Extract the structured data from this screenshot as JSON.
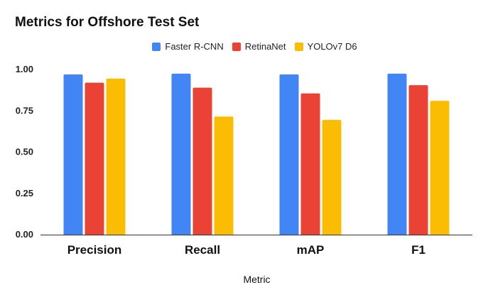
{
  "chart_data": {
    "type": "bar",
    "title": "Metrics for Offshore Test Set",
    "xlabel": "Metric",
    "ylabel": "",
    "categories": [
      "Precision",
      "Recall",
      "mAP",
      "F1"
    ],
    "series": [
      {
        "name": "Faster R-CNN",
        "color": "#4285F4",
        "values": [
          0.97,
          0.975,
          0.97,
          0.975
        ]
      },
      {
        "name": "RetinaNet",
        "color": "#EA4335",
        "values": [
          0.92,
          0.89,
          0.855,
          0.905
        ]
      },
      {
        "name": "YOLOv7 D6",
        "color": "#FBBC04",
        "values": [
          0.945,
          0.715,
          0.695,
          0.81
        ]
      }
    ],
    "ylim": [
      0,
      1
    ],
    "yticks": [
      "0.00",
      "0.25",
      "0.50",
      "0.75",
      "1.00"
    ],
    "ytick_values": [
      0,
      0.25,
      0.5,
      0.75,
      1.0
    ],
    "grid": false,
    "legend_position": "top-center"
  }
}
